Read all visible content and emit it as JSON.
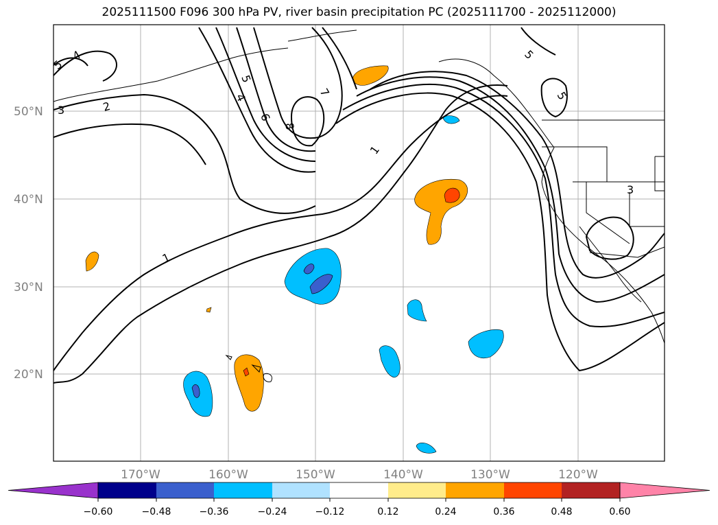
{
  "title": "2025111500 F096 300 hPa PV, river basin precipitation PC (2025111700 - 2025112000)",
  "latitudes": [
    "50°N",
    "40°N",
    "30°N",
    "20°N"
  ],
  "longitudes": [
    "170°W",
    "160°W",
    "150°W",
    "140°W",
    "130°W",
    "120°W"
  ],
  "pv_contour_labels": [
    "1",
    "1",
    "2",
    "3",
    "3",
    "4",
    "4",
    "5",
    "5",
    "5",
    "5",
    "6",
    "7",
    "8"
  ],
  "colorbar": {
    "ticks": [
      "−0.60",
      "−0.48",
      "−0.36",
      "−0.24",
      "−0.12",
      "0.12",
      "0.24",
      "0.36",
      "0.48",
      "0.60"
    ],
    "colors": {
      "extend_min": "#9932cc",
      "bins": [
        "#00008b",
        "#3a5fcd",
        "#00bfff",
        "#b0e2ff",
        "#ffffff",
        "#ffec8b",
        "#ffa500",
        "#ff4500",
        "#b22222"
      ],
      "extend_max": "#ff83a8"
    }
  }
}
